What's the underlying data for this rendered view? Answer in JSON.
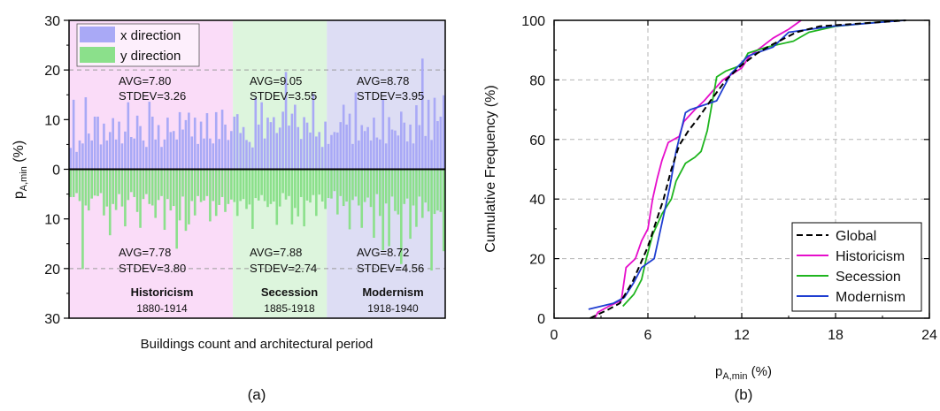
{
  "chart_data": [
    {
      "type": "bar",
      "panel_label": "(a)",
      "xlabel": "Buildings count and architectural period",
      "ylabel_main": "p",
      "ylabel_sub": "A,min",
      "ylabel_unit": " (%)",
      "ylim": [
        -30,
        30
      ],
      "yticks": [
        {
          "value": 30,
          "label": "30"
        },
        {
          "value": 20,
          "label": "20"
        },
        {
          "value": 10,
          "label": "10"
        },
        {
          "value": 0,
          "label": "0"
        },
        {
          "value": -10,
          "label": "10"
        },
        {
          "value": -20,
          "label": "20"
        },
        {
          "value": -30,
          "label": "30"
        }
      ],
      "legend": {
        "placement": "top-left",
        "entries": [
          {
            "label": "x direction",
            "color": "#a9a9f6"
          },
          {
            "label": "y direction",
            "color": "#8be08b"
          }
        ]
      },
      "periods": [
        {
          "name": "Historicism",
          "years": "1880-1914",
          "color": "#fadcf8",
          "x": {
            "avg": "AVG=7.80",
            "stdev": "STDEV=3.26"
          },
          "y": {
            "avg": "AVG=7.78",
            "stdev": "STDEV=3.80"
          }
        },
        {
          "name": "Secession",
          "years": "1885-1918",
          "color": "#ddf5dd",
          "x": {
            "avg": "AVG=9.05",
            "stdev": "STDEV=3.55"
          },
          "y": {
            "avg": "AVG=7.88",
            "stdev": "STDEV=2.74"
          }
        },
        {
          "name": "Modernism",
          "years": "1918-1940",
          "color": "#ddddf4",
          "x": {
            "avg": "AVG=8.78",
            "stdev": "STDEV=3.95"
          },
          "y": {
            "avg": "AVG=8.72",
            "stdev": "STDEV=4.56"
          }
        }
      ],
      "series": [
        {
          "name": "x direction",
          "color": "#a9a9f6",
          "values": [
            4.3,
            14.0,
            3.5,
            5.8,
            5.2,
            14.5,
            7.2,
            5.8,
            10.6,
            10.6,
            5.0,
            9.2,
            5.8,
            7.5,
            10.3,
            6.0,
            9.6,
            5.2,
            7.6,
            13.5,
            6.5,
            6.2,
            10.8,
            8.7,
            5.8,
            4.5,
            13.6,
            10.6,
            6.0,
            8.9,
            4.5,
            6.0,
            10.4,
            7.5,
            7.7,
            6.0,
            11.5,
            8.0,
            9.9,
            11.4,
            6.6,
            10.4,
            5.1,
            9.6,
            6.2,
            11.3,
            6.2,
            5.2,
            11.5,
            6.1,
            12.0,
            9.0,
            5.9,
            7.7,
            10.6,
            11.1,
            7.3,
            8.5,
            5.9,
            5.5,
            4.4,
            14.4,
            9.0,
            13.5,
            6.2,
            10.4,
            9.5,
            10.5,
            7.3,
            8.4,
            11.6,
            19.6,
            8.8,
            11.2,
            13.0,
            8.5,
            6.1,
            10.5,
            9.4,
            7.4,
            15.2,
            6.6,
            7.5,
            4.5,
            9.6,
            5.1,
            6.9,
            7.5,
            7.4,
            9.5,
            13.0,
            9.0,
            11.2,
            5.1,
            15.5,
            5.8,
            8.9,
            7.7,
            8.5,
            5.8,
            10.4,
            6.4,
            6.0,
            14.0,
            5.2,
            10.5,
            8.0,
            7.8,
            6.8,
            11.6,
            9.4,
            5.6,
            9.0,
            5.2,
            12.9,
            8.9,
            22.3,
            6.7,
            14.0,
            5.9,
            14.4,
            9.7,
            10.6,
            14.9
          ]
        },
        {
          "name": "y direction",
          "color": "#8be08b",
          "values": [
            5.6,
            5.6,
            4.8,
            6.4,
            20.1,
            7.3,
            8.3,
            5.9,
            5.3,
            5.4,
            4.8,
            9.3,
            7.5,
            13.3,
            7.0,
            8.2,
            5.0,
            7.5,
            11.5,
            6.2,
            4.6,
            5.6,
            8.6,
            11.8,
            6.0,
            5.0,
            7.0,
            7.3,
            9.8,
            6.2,
            5.4,
            12.2,
            6.0,
            8.3,
            7.4,
            16.0,
            10.3,
            5.5,
            12.4,
            11.1,
            6.4,
            9.3,
            5.4,
            6.6,
            6.3,
            5.4,
            10.5,
            6.4,
            9.4,
            7.2,
            5.6,
            8.6,
            7.0,
            6.1,
            6.6,
            9.4,
            6.4,
            6.0,
            8.0,
            7.1,
            12.0,
            5.8,
            6.3,
            5.2,
            6.4,
            7.6,
            7.0,
            6.5,
            11.2,
            7.5,
            4.8,
            6.1,
            5.4,
            11.1,
            7.8,
            9.5,
            5.6,
            11.5,
            6.3,
            6.7,
            5.2,
            9.4,
            5.1,
            6.5,
            8.0,
            5.8,
            5.9,
            4.4,
            9.1,
            5.4,
            7.4,
            6.5,
            12.1,
            6.2,
            5.5,
            7.3,
            11.8,
            6.6,
            5.7,
            7.6,
            13.8,
            5.0,
            9.4,
            16.3,
            6.9,
            15.5,
            5.5,
            8.4,
            9.1,
            19.1,
            7.0,
            5.9,
            14.0,
            7.3,
            11.6,
            5.5,
            9.8,
            6.7,
            8.5,
            20.4,
            9.0,
            8.3,
            8.6,
            16.5
          ]
        }
      ],
      "period_spans": [
        [
          0,
          53
        ],
        [
          54,
          84
        ],
        [
          85,
          123
        ]
      ]
    },
    {
      "type": "line",
      "panel_label": "(b)",
      "xlabel_main": "p",
      "xlabel_sub": "A,min",
      "xlabel_unit": " (%)",
      "ylabel": "Cumulative Frequency (%)",
      "xlim": [
        0,
        24
      ],
      "ylim": [
        0,
        100
      ],
      "xticks": [
        0,
        6,
        12,
        18,
        24
      ],
      "yticks": [
        0,
        20,
        40,
        60,
        80,
        100
      ],
      "grid": true,
      "legend": {
        "placement": "bottom-right"
      },
      "series": [
        {
          "name": "Global",
          "color": "#000000",
          "dash": true,
          "points": [
            [
              2.3,
              0
            ],
            [
              3.5,
              3
            ],
            [
              4.2,
              5
            ],
            [
              5.0,
              12
            ],
            [
              5.5,
              18
            ],
            [
              6.0,
              24
            ],
            [
              6.5,
              32
            ],
            [
              7.0,
              40
            ],
            [
              7.5,
              50
            ],
            [
              8.0,
              58
            ],
            [
              8.6,
              63
            ],
            [
              9.2,
              67
            ],
            [
              10.0,
              73
            ],
            [
              11.0,
              80
            ],
            [
              12.0,
              85
            ],
            [
              13.0,
              89
            ],
            [
              14.0,
              92
            ],
            [
              15.5,
              96
            ],
            [
              17.0,
              98
            ],
            [
              22.5,
              100
            ]
          ]
        },
        {
          "name": "Historicism",
          "color": "#e60ecb",
          "dash": false,
          "points": [
            [
              2.6,
              0
            ],
            [
              2.8,
              2
            ],
            [
              3.5,
              4
            ],
            [
              4.3,
              6
            ],
            [
              4.6,
              17
            ],
            [
              5.2,
              20
            ],
            [
              5.6,
              26
            ],
            [
              6.0,
              30
            ],
            [
              6.3,
              40
            ],
            [
              6.6,
              47
            ],
            [
              6.9,
              53
            ],
            [
              7.3,
              59
            ],
            [
              8.0,
              61
            ],
            [
              8.3,
              66
            ],
            [
              9.0,
              70
            ],
            [
              9.6,
              73
            ],
            [
              10.1,
              76
            ],
            [
              10.8,
              80
            ],
            [
              12.0,
              84
            ],
            [
              12.5,
              88
            ],
            [
              13.0,
              90
            ],
            [
              14.0,
              94
            ],
            [
              15.0,
              97
            ],
            [
              15.8,
              100
            ]
          ]
        },
        {
          "name": "Secession",
          "color": "#1fb51f",
          "dash": false,
          "points": [
            [
              4.4,
              4
            ],
            [
              5.1,
              8
            ],
            [
              5.6,
              13
            ],
            [
              5.9,
              20
            ],
            [
              6.3,
              28
            ],
            [
              6.9,
              35
            ],
            [
              7.5,
              40
            ],
            [
              7.8,
              46
            ],
            [
              8.0,
              48
            ],
            [
              8.4,
              52
            ],
            [
              9.0,
              54
            ],
            [
              9.4,
              56
            ],
            [
              9.8,
              63
            ],
            [
              10.1,
              72
            ],
            [
              10.4,
              81
            ],
            [
              11.0,
              83
            ],
            [
              12.0,
              85
            ],
            [
              12.4,
              89
            ],
            [
              13.6,
              91
            ],
            [
              15.3,
              93
            ],
            [
              16.3,
              96
            ],
            [
              18.0,
              98
            ],
            [
              22.0,
              100
            ]
          ]
        },
        {
          "name": "Modernism",
          "color": "#1f3ed1",
          "dash": false,
          "points": [
            [
              2.2,
              3
            ],
            [
              3.8,
              5
            ],
            [
              4.5,
              7
            ],
            [
              5.1,
              12
            ],
            [
              5.6,
              17
            ],
            [
              6.4,
              20
            ],
            [
              6.9,
              32
            ],
            [
              7.4,
              44
            ],
            [
              7.8,
              56
            ],
            [
              8.4,
              69
            ],
            [
              8.7,
              70
            ],
            [
              10.4,
              73
            ],
            [
              11.3,
              82
            ],
            [
              12.4,
              88
            ],
            [
              12.9,
              89
            ],
            [
              14.0,
              91
            ],
            [
              15.0,
              96
            ],
            [
              17.8,
              98
            ],
            [
              22.4,
              100
            ]
          ]
        }
      ]
    }
  ]
}
